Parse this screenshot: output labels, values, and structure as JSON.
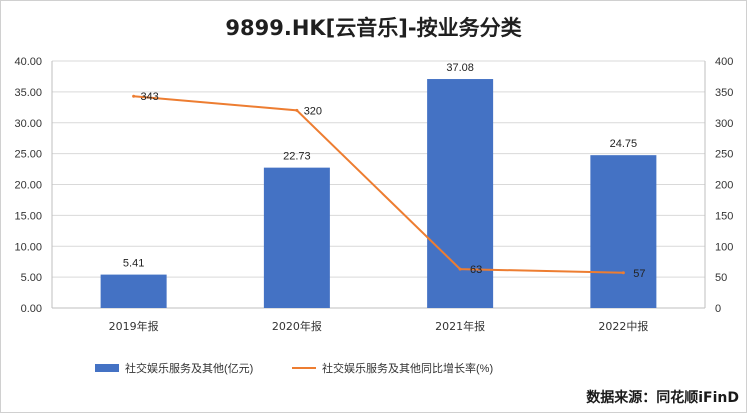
{
  "chart_data": {
    "type": "bar+line",
    "title": "9899.HK[云音乐]-按业务分类",
    "categories": [
      "2019年报",
      "2020年报",
      "2021年报",
      "2022中报"
    ],
    "series": [
      {
        "name": "社交娱乐服务及其他(亿元)",
        "type": "bar",
        "axis": "left",
        "values": [
          5.41,
          22.73,
          37.08,
          24.75
        ],
        "labels": [
          "5.41",
          "22.73",
          "37.08",
          "24.75"
        ],
        "color": "#4472c4"
      },
      {
        "name": "社交娱乐服务及其他同比增长率(%)",
        "type": "line",
        "axis": "right",
        "values": [
          343,
          320,
          63,
          57
        ],
        "labels": [
          "343",
          "320",
          "63",
          "57"
        ],
        "color": "#ed7d31"
      }
    ],
    "y_left": {
      "min": 0,
      "max": 40,
      "ticks": [
        "0.00",
        "5.00",
        "10.00",
        "15.00",
        "20.00",
        "25.00",
        "30.00",
        "35.00",
        "40.00"
      ]
    },
    "y_right": {
      "min": 0,
      "max": 400,
      "ticks": [
        "0",
        "50",
        "100",
        "150",
        "200",
        "250",
        "300",
        "350",
        "400"
      ]
    },
    "grid": true,
    "legend_position": "bottom"
  },
  "source_text": "数据来源：同花顺iFinD"
}
